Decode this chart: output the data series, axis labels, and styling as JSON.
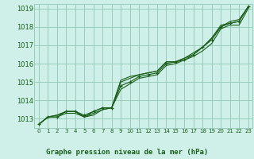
{
  "title": "Graphe pression niveau de la mer (hPa)",
  "bg_color": "#cff0e8",
  "grid_color": "#99ccbb",
  "line_color": "#1a5e1a",
  "text_color": "#1a5e1a",
  "xlim": [
    -0.5,
    23.5
  ],
  "ylim": [
    1012.5,
    1019.25
  ],
  "yticks": [
    1013,
    1014,
    1015,
    1016,
    1017,
    1018,
    1019
  ],
  "xticks": [
    0,
    1,
    2,
    3,
    4,
    5,
    6,
    7,
    8,
    9,
    10,
    11,
    12,
    13,
    14,
    15,
    16,
    17,
    18,
    19,
    20,
    21,
    22,
    23
  ],
  "series": [
    [
      1012.7,
      1013.1,
      1013.1,
      1013.4,
      1013.4,
      1013.2,
      1013.4,
      1013.6,
      1013.6,
      1014.8,
      1015.0,
      1015.3,
      1015.4,
      1015.5,
      1016.0,
      1016.1,
      1016.2,
      1016.5,
      1016.9,
      1017.3,
      1018.0,
      1018.2,
      1018.3,
      1019.1
    ],
    [
      1012.7,
      1013.1,
      1013.1,
      1013.3,
      1013.3,
      1013.1,
      1013.2,
      1013.5,
      1013.6,
      1014.6,
      1014.9,
      1015.2,
      1015.3,
      1015.4,
      1015.9,
      1016.0,
      1016.2,
      1016.4,
      1016.7,
      1017.1,
      1017.9,
      1018.1,
      1018.1,
      1019.0
    ],
    [
      1012.7,
      1013.1,
      1013.2,
      1013.4,
      1013.4,
      1013.1,
      1013.3,
      1013.5,
      1013.6,
      1015.0,
      1015.2,
      1015.4,
      1015.5,
      1015.6,
      1016.1,
      1016.1,
      1016.3,
      1016.6,
      1016.9,
      1017.4,
      1018.1,
      1018.2,
      1018.3,
      1019.1
    ],
    [
      1012.7,
      1013.1,
      1013.2,
      1013.4,
      1013.4,
      1013.1,
      1013.4,
      1013.6,
      1013.6,
      1015.1,
      1015.3,
      1015.4,
      1015.5,
      1015.6,
      1016.1,
      1016.1,
      1016.3,
      1016.5,
      1016.9,
      1017.4,
      1018.0,
      1018.3,
      1018.4,
      1019.1
    ]
  ],
  "marker_series_idx": 0,
  "ytick_fontsize": 6,
  "xtick_fontsize": 5,
  "title_fontsize": 6.5
}
